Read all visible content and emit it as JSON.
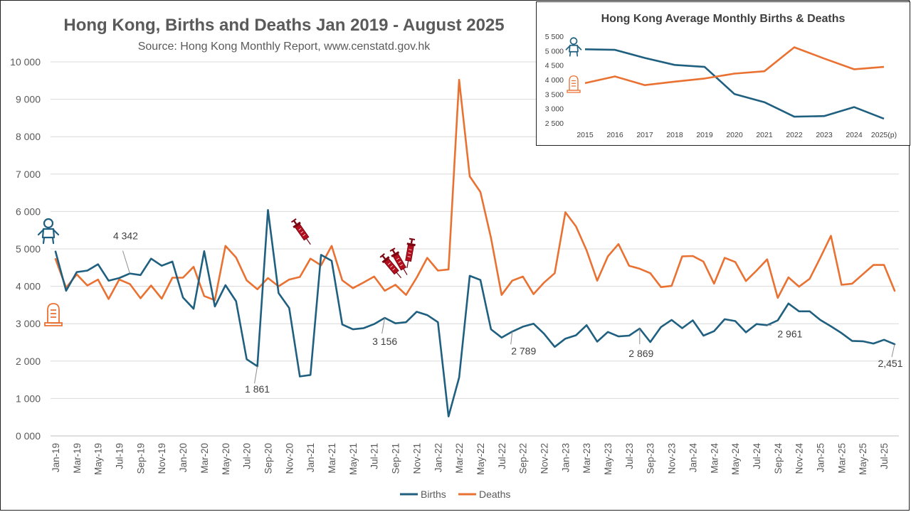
{
  "chart_data": [
    {
      "type": "line",
      "title": "Hong Kong, Births and Deaths Jan 2019 - August 2025",
      "subtitle": "Source: Hong Kong Monthly Report, www.censtatd.gov.hk",
      "ylim": [
        0,
        10000
      ],
      "yticks": [
        0,
        1000,
        2000,
        3000,
        4000,
        5000,
        6000,
        7000,
        8000,
        9000,
        10000
      ],
      "ytick_labels": [
        "0 000",
        "1 000",
        "2 000",
        "3 000",
        "4 000",
        "5 000",
        "6 000",
        "7 000",
        "8 000",
        "9 000",
        "10 000"
      ],
      "x_tick_labels": [
        "Jan-19",
        "Mar-19",
        "May-19",
        "Jul-19",
        "Sep-19",
        "Nov-19",
        "Jan-20",
        "Mar-20",
        "May-20",
        "Jul-20",
        "Sep-20",
        "Nov-20",
        "Jan-21",
        "Mar-21",
        "May-21",
        "Jul-21",
        "Sep-21",
        "Nov-21",
        "Jan-22",
        "Mar-22",
        "May-22",
        "Jul-22",
        "Sep-22",
        "Nov-22",
        "Jan-23",
        "Mar-23",
        "May-23",
        "Jul-23",
        "Sep-23",
        "Nov-23",
        "Jan-24",
        "Mar-24",
        "May-24",
        "Jul-24",
        "Sep-24",
        "Nov-24",
        "Jan-25",
        "Mar-25",
        "May-25",
        "Jul-25"
      ],
      "grid": true,
      "legend_position": "bottom",
      "series": [
        {
          "name": "Births",
          "color": "#1f5f7f",
          "values": [
            4930,
            3880,
            4380,
            4420,
            4590,
            4150,
            4220,
            4342,
            4300,
            4740,
            4550,
            4660,
            3700,
            3400,
            4940,
            3460,
            4030,
            3600,
            2050,
            1861,
            6040,
            3820,
            3420,
            1590,
            1630,
            4840,
            4680,
            2980,
            2850,
            2880,
            2990,
            3156,
            3010,
            3040,
            3320,
            3230,
            3040,
            520,
            1560,
            4280,
            4170,
            2850,
            2630,
            2789,
            2920,
            3000,
            2730,
            2380,
            2600,
            2690,
            2960,
            2520,
            2780,
            2660,
            2680,
            2869,
            2510,
            2910,
            3100,
            2880,
            3090,
            2680,
            2800,
            3120,
            3070,
            2770,
            2990,
            2961,
            3090,
            3540,
            3330,
            3330,
            3100,
            2930,
            2750,
            2540,
            2530,
            2470,
            2570,
            2451
          ]
        },
        {
          "name": "Deaths",
          "color": "#e97132",
          "values": [
            4730,
            3960,
            4320,
            4020,
            4180,
            3660,
            4180,
            4060,
            3680,
            4020,
            3670,
            4230,
            4230,
            4520,
            3740,
            3630,
            5080,
            4770,
            4160,
            3920,
            4220,
            4000,
            4180,
            4250,
            4740,
            4560,
            5080,
            4160,
            3950,
            4100,
            4260,
            3880,
            4040,
            3770,
            4230,
            4760,
            4420,
            4450,
            9520,
            6940,
            6520,
            5290,
            3770,
            4150,
            4260,
            3790,
            4100,
            4350,
            5980,
            5600,
            4960,
            4150,
            4800,
            5130,
            4550,
            4470,
            4350,
            3980,
            4010,
            4800,
            4810,
            4660,
            4070,
            4760,
            4650,
            4140,
            4420,
            4720,
            3690,
            4240,
            3990,
            4200,
            4760,
            5350,
            4040,
            4070,
            4320,
            4570,
            4570,
            3880
          ]
        }
      ],
      "annotations": [
        {
          "text": "4 342",
          "series": "Births",
          "index": 7
        },
        {
          "text": "1 861",
          "series": "Births",
          "index": 19
        },
        {
          "text": "3 156",
          "series": "Births",
          "index": 31
        },
        {
          "text": "2 789",
          "series": "Births",
          "index": 43
        },
        {
          "text": "2 869",
          "series": "Births",
          "index": 55
        },
        {
          "text": "2 961",
          "series": "Births",
          "index": 67
        },
        {
          "text": "2,451",
          "series": "Births",
          "index": 79
        }
      ],
      "icons": [
        "baby-icon",
        "gravestone-icon",
        "syringe-icon"
      ]
    },
    {
      "type": "line",
      "title": "Hong Kong Average Monthly Births & Deaths",
      "categories": [
        "2015",
        "2016",
        "2017",
        "2018",
        "2019",
        "2020",
        "2021",
        "2022",
        "2023",
        "2024",
        "2025(p)"
      ],
      "ylim": [
        2500,
        5500
      ],
      "yticks": [
        2500,
        3000,
        3500,
        4000,
        4500,
        5000,
        5500
      ],
      "ytick_labels": [
        "2 500",
        "3 000",
        "3 500",
        "4 000",
        "4 500",
        "5 000",
        "5 500"
      ],
      "series": [
        {
          "name": "Births",
          "color": "#1f5f7f",
          "values": [
            5050,
            5030,
            4750,
            4510,
            4440,
            3500,
            3220,
            2720,
            2740,
            3050,
            2650
          ]
        },
        {
          "name": "Deaths",
          "color": "#e97132",
          "values": [
            3880,
            4110,
            3810,
            3930,
            4040,
            4210,
            4290,
            5120,
            4730,
            4360,
            4440
          ]
        }
      ]
    }
  ]
}
